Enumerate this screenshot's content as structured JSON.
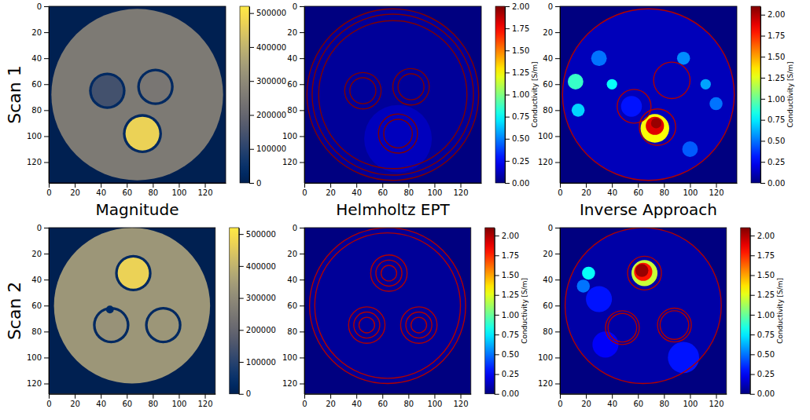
{
  "rows": [
    "Scan 1",
    "Scan 2"
  ],
  "columns": [
    "Magnitude",
    "Helmholtz EPT",
    "Inverse Approach"
  ],
  "chart_data": [
    {
      "type": "heatmap",
      "color": "cividis",
      "xlim": [
        0,
        136
      ],
      "ylim": [
        136,
        0
      ],
      "xticks": [
        0,
        20,
        40,
        60,
        80,
        100,
        120
      ],
      "yticks": [
        0,
        20,
        40,
        60,
        80,
        100,
        120
      ],
      "background": 0,
      "disks": [
        {
          "cx": 68,
          "cy": 68,
          "r": 66,
          "value": 255000
        },
        {
          "cx": 45,
          "cy": 65,
          "r": 14,
          "value": 25000
        },
        {
          "cx": 45,
          "cy": 65,
          "r": 12,
          "value": 140000
        },
        {
          "cx": 82,
          "cy": 62,
          "r": 14,
          "value": 25000
        },
        {
          "cx": 82,
          "cy": 62,
          "r": 12,
          "value": 245000
        },
        {
          "cx": 72,
          "cy": 98,
          "r": 15,
          "value": 25000
        },
        {
          "cx": 72,
          "cy": 98,
          "r": 13,
          "value": 470000
        }
      ],
      "rings": [],
      "colorbar": {
        "range": [
          0,
          520000
        ],
        "ticks": [
          0,
          100000,
          200000,
          300000,
          400000,
          500000
        ]
      }
    },
    {
      "type": "heatmap",
      "color": "jet",
      "xlim": [
        0,
        136
      ],
      "ylim": [
        136,
        0
      ],
      "xticks": [
        0,
        20,
        40,
        60,
        80,
        100,
        120
      ],
      "yticks": [
        0,
        20,
        40,
        60,
        80,
        100,
        120
      ],
      "background": 0,
      "disks": [
        {
          "cx": 68,
          "cy": 68,
          "r": 66,
          "value": 0.05
        },
        {
          "cx": 72,
          "cy": 102,
          "r": 26,
          "value": 0.12
        }
      ],
      "rings": [
        {
          "cx": 68,
          "cy": 68,
          "r": 66,
          "value": 2.0
        },
        {
          "cx": 68,
          "cy": 68,
          "r": 62,
          "value": 2.0
        },
        {
          "cx": 68,
          "cy": 68,
          "r": 57,
          "value": 2.0
        },
        {
          "cx": 45,
          "cy": 65,
          "r": 14,
          "value": 2.0
        },
        {
          "cx": 45,
          "cy": 65,
          "r": 10,
          "value": 2.0
        },
        {
          "cx": 82,
          "cy": 62,
          "r": 14,
          "value": 2.0
        },
        {
          "cx": 82,
          "cy": 62,
          "r": 10,
          "value": 2.0
        },
        {
          "cx": 72,
          "cy": 98,
          "r": 15,
          "value": 2.0
        },
        {
          "cx": 72,
          "cy": 98,
          "r": 11,
          "value": 2.0
        }
      ],
      "colorbar": {
        "label": "Conductivity [S/m]",
        "range": [
          0,
          2
        ],
        "ticks": [
          {
            "value": 0,
            "label": "0.00"
          },
          {
            "value": 0.25,
            "label": "0.25"
          },
          {
            "value": 0.5,
            "label": "0.50"
          },
          {
            "value": 0.75,
            "label": "0.75"
          },
          {
            "value": 1,
            "label": "1.00"
          },
          {
            "value": 1.25,
            "label": "1.25"
          },
          {
            "value": 1.5,
            "label": "1.50"
          },
          {
            "value": 1.75,
            "label": "1.75"
          },
          {
            "value": 2,
            "label": "2.00"
          }
        ]
      }
    },
    {
      "type": "heatmap",
      "color": "jet",
      "xlim": [
        0,
        136
      ],
      "ylim": [
        136,
        0
      ],
      "xticks": [
        0,
        20,
        40,
        60,
        80,
        100,
        120
      ],
      "yticks": [
        0,
        20,
        40,
        60,
        80,
        100,
        120
      ],
      "background": 0,
      "disks": [
        {
          "cx": 68,
          "cy": 68,
          "r": 66,
          "value": 0.12
        },
        {
          "cx": 12,
          "cy": 58,
          "r": 6,
          "value": 0.9
        },
        {
          "cx": 14,
          "cy": 80,
          "r": 5,
          "value": 0.7
        },
        {
          "cx": 40,
          "cy": 60,
          "r": 4,
          "value": 0.8
        },
        {
          "cx": 30,
          "cy": 40,
          "r": 6,
          "value": 0.5
        },
        {
          "cx": 100,
          "cy": 110,
          "r": 6,
          "value": 0.45
        },
        {
          "cx": 120,
          "cy": 75,
          "r": 5,
          "value": 0.5
        },
        {
          "cx": 95,
          "cy": 40,
          "r": 5,
          "value": 0.55
        },
        {
          "cx": 112,
          "cy": 60,
          "r": 4,
          "value": 0.6
        },
        {
          "cx": 55,
          "cy": 77,
          "r": 8,
          "value": 0.3
        },
        {
          "cx": 73,
          "cy": 94,
          "r": 11,
          "value": 1.3
        },
        {
          "cx": 73,
          "cy": 92,
          "r": 7,
          "value": 1.9
        },
        {
          "cx": 74,
          "cy": 90,
          "r": 4,
          "value": 2.05
        }
      ],
      "rings": [
        {
          "cx": 68,
          "cy": 68,
          "r": 66,
          "value": 2.0
        },
        {
          "cx": 57,
          "cy": 77,
          "r": 13,
          "value": 2.0
        },
        {
          "cx": 86,
          "cy": 57,
          "r": 14,
          "value": 2.0
        },
        {
          "cx": 75,
          "cy": 93,
          "r": 14,
          "value": 2.0
        }
      ],
      "colorbar": {
        "label": "Conductivity [S/m]",
        "range": [
          0,
          2.1
        ],
        "ticks": [
          {
            "value": 0,
            "label": "0.00"
          },
          {
            "value": 0.25,
            "label": "0.25"
          },
          {
            "value": 0.5,
            "label": "0.50"
          },
          {
            "value": 0.75,
            "label": "0.75"
          },
          {
            "value": 1,
            "label": "1.00"
          },
          {
            "value": 1.25,
            "label": "1.25"
          },
          {
            "value": 1.5,
            "label": "1.50"
          },
          {
            "value": 1.75,
            "label": "1.75"
          },
          {
            "value": 2,
            "label": "2.00"
          }
        ]
      }
    },
    {
      "type": "heatmap",
      "color": "cividis",
      "xlim": [
        0,
        128
      ],
      "ylim": [
        128,
        0
      ],
      "xticks": [
        0,
        20,
        40,
        60,
        80,
        100,
        120
      ],
      "yticks": [
        0,
        20,
        40,
        60,
        80,
        100,
        120
      ],
      "background": 0,
      "disks": [
        {
          "cx": 64,
          "cy": 60,
          "r": 60,
          "value": 330000
        },
        {
          "cx": 65,
          "cy": 35,
          "r": 14,
          "value": 25000
        },
        {
          "cx": 65,
          "cy": 35,
          "r": 12,
          "value": 470000
        },
        {
          "cx": 48,
          "cy": 75,
          "r": 14,
          "value": 25000
        },
        {
          "cx": 48,
          "cy": 75,
          "r": 12,
          "value": 320000
        },
        {
          "cx": 88,
          "cy": 75,
          "r": 14,
          "value": 25000
        },
        {
          "cx": 88,
          "cy": 75,
          "r": 12,
          "value": 330000
        },
        {
          "cx": 47,
          "cy": 63,
          "r": 3,
          "value": 30000
        }
      ],
      "rings": [],
      "colorbar": {
        "range": [
          0,
          520000
        ],
        "ticks": [
          0,
          100000,
          200000,
          300000,
          400000,
          500000
        ]
      }
    },
    {
      "type": "heatmap",
      "color": "jet",
      "xlim": [
        0,
        128
      ],
      "ylim": [
        128,
        0
      ],
      "xticks": [
        0,
        20,
        40,
        60,
        80,
        100,
        120
      ],
      "yticks": [
        0,
        20,
        40,
        60,
        80,
        100,
        120
      ],
      "background": 0,
      "disks": [
        {
          "cx": 64,
          "cy": 60,
          "r": 60,
          "value": 0.05
        }
      ],
      "rings": [
        {
          "cx": 64,
          "cy": 60,
          "r": 60,
          "value": 2.0
        },
        {
          "cx": 64,
          "cy": 60,
          "r": 56,
          "value": 2.0
        },
        {
          "cx": 65,
          "cy": 35,
          "r": 14,
          "value": 2.0
        },
        {
          "cx": 65,
          "cy": 35,
          "r": 10,
          "value": 2.0
        },
        {
          "cx": 65,
          "cy": 35,
          "r": 6,
          "value": 2.0
        },
        {
          "cx": 48,
          "cy": 75,
          "r": 14,
          "value": 2.0
        },
        {
          "cx": 48,
          "cy": 75,
          "r": 10,
          "value": 2.0
        },
        {
          "cx": 48,
          "cy": 75,
          "r": 6,
          "value": 2.0
        },
        {
          "cx": 88,
          "cy": 75,
          "r": 14,
          "value": 2.0
        },
        {
          "cx": 88,
          "cy": 75,
          "r": 10,
          "value": 2.0
        },
        {
          "cx": 88,
          "cy": 75,
          "r": 6,
          "value": 2.0
        }
      ],
      "colorbar": {
        "label": "Conductivity [S/m]",
        "range": [
          0,
          2.1
        ],
        "ticks": [
          {
            "value": 0,
            "label": "0.00"
          },
          {
            "value": 0.25,
            "label": "0.25"
          },
          {
            "value": 0.5,
            "label": "0.50"
          },
          {
            "value": 0.75,
            "label": "0.75"
          },
          {
            "value": 1,
            "label": "1.00"
          },
          {
            "value": 1.25,
            "label": "1.25"
          },
          {
            "value": 1.5,
            "label": "1.50"
          },
          {
            "value": 1.75,
            "label": "1.75"
          },
          {
            "value": 2,
            "label": "2.00"
          }
        ]
      }
    },
    {
      "type": "heatmap",
      "color": "jet",
      "xlim": [
        0,
        128
      ],
      "ylim": [
        128,
        0
      ],
      "xticks": [
        0,
        20,
        40,
        60,
        80,
        100,
        120
      ],
      "yticks": [
        0,
        20,
        40,
        60,
        80,
        100,
        120
      ],
      "background": 0,
      "disks": [
        {
          "cx": 64,
          "cy": 60,
          "r": 60,
          "value": 0.08
        },
        {
          "cx": 30,
          "cy": 55,
          "r": 10,
          "value": 0.3
        },
        {
          "cx": 95,
          "cy": 100,
          "r": 12,
          "value": 0.3
        },
        {
          "cx": 35,
          "cy": 90,
          "r": 10,
          "value": 0.25
        },
        {
          "cx": 18,
          "cy": 45,
          "r": 5,
          "value": 0.5
        },
        {
          "cx": 22,
          "cy": 35,
          "r": 5,
          "value": 0.8
        },
        {
          "cx": 65,
          "cy": 35,
          "r": 10,
          "value": 1.2
        },
        {
          "cx": 64,
          "cy": 34,
          "r": 7,
          "value": 1.8
        },
        {
          "cx": 63,
          "cy": 33,
          "r": 5,
          "value": 2.05
        }
      ],
      "rings": [
        {
          "cx": 64,
          "cy": 60,
          "r": 60,
          "value": 2.0
        },
        {
          "cx": 65,
          "cy": 35,
          "r": 13,
          "value": 2.0
        },
        {
          "cx": 48,
          "cy": 77,
          "r": 13,
          "value": 2.0
        },
        {
          "cx": 48,
          "cy": 77,
          "r": 11,
          "value": 2.0
        },
        {
          "cx": 88,
          "cy": 75,
          "r": 13,
          "value": 2.0
        },
        {
          "cx": 88,
          "cy": 75,
          "r": 11,
          "value": 2.0
        }
      ],
      "colorbar": {
        "label": "Conductivity [S/m]",
        "range": [
          0,
          2.1
        ],
        "ticks": [
          {
            "value": 0,
            "label": "0.00"
          },
          {
            "value": 0.25,
            "label": "0.25"
          },
          {
            "value": 0.5,
            "label": "0.50"
          },
          {
            "value": 0.75,
            "label": "0.75"
          },
          {
            "value": 1,
            "label": "1.00"
          },
          {
            "value": 1.25,
            "label": "1.25"
          },
          {
            "value": 1.5,
            "label": "1.50"
          },
          {
            "value": 1.75,
            "label": "1.75"
          },
          {
            "value": 2,
            "label": "2.00"
          }
        ]
      }
    }
  ]
}
